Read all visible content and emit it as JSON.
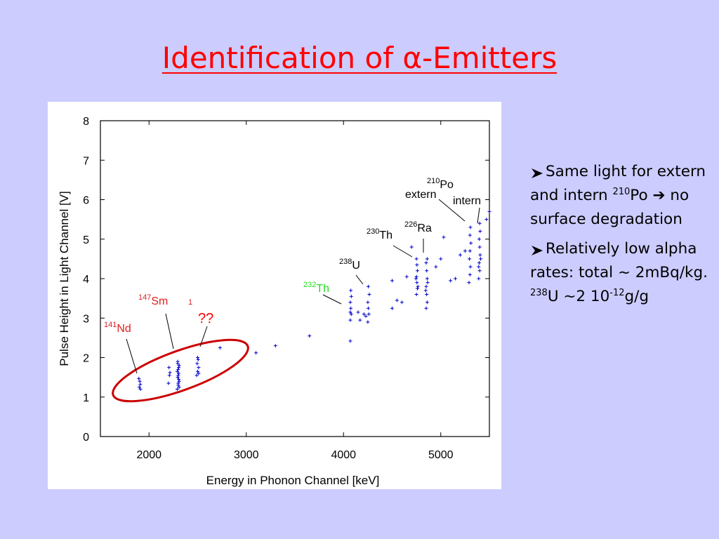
{
  "title": "Identification of α-Emitters",
  "chart_data": {
    "type": "scatter",
    "xlabel": "Energy in Phonon Channel [keV]",
    "ylabel": "Pulse Height in Light Channel  [V]",
    "xlim": [
      1500,
      5500
    ],
    "xticks": [
      2000,
      3000,
      4000,
      5000
    ],
    "ylim": [
      0,
      8
    ],
    "yticks": [
      0,
      1,
      2,
      3,
      4,
      5,
      6,
      7,
      8
    ],
    "color": "#0000cc",
    "x": [
      1900,
      1910,
      1905,
      1895,
      1912,
      2200,
      2210,
      2205,
      2215,
      2290,
      2300,
      2310,
      2295,
      2305,
      2300,
      2310,
      2295,
      2305,
      2300,
      2290,
      2310,
      2300,
      2305,
      2295,
      2490,
      2500,
      2510,
      2495,
      2505,
      2500,
      2510,
      2730,
      3100,
      3300,
      3650,
      4070,
      4070,
      4080,
      4075,
      4070,
      4080,
      4075,
      4070,
      4170,
      4150,
      4210,
      4230,
      4250,
      4260,
      4255,
      4250,
      4265,
      4255,
      4500,
      4500,
      4550,
      4600,
      4650,
      4700,
      4750,
      4760,
      4755,
      4750,
      4760,
      4755,
      4750,
      4765,
      4745,
      4850,
      4860,
      4855,
      4850,
      4860,
      4855,
      4850,
      4860,
      4845,
      4865,
      4950,
      5000,
      5030,
      5100,
      5150,
      5200,
      5250,
      5290,
      5300,
      5305,
      5295,
      5300,
      5310,
      5300,
      5305,
      5390,
      5400,
      5395,
      5405,
      5400,
      5395,
      5405,
      5400,
      5390,
      5410,
      5470,
      5500
    ],
    "y": [
      1.25,
      1.32,
      1.4,
      1.47,
      1.2,
      1.35,
      1.55,
      1.75,
      1.62,
      1.2,
      1.3,
      1.4,
      1.5,
      1.6,
      1.7,
      1.8,
      1.9,
      1.45,
      1.55,
      1.65,
      1.25,
      1.35,
      1.75,
      1.85,
      1.55,
      1.65,
      1.75,
      1.85,
      1.95,
      2.0,
      1.6,
      2.25,
      2.12,
      2.3,
      2.55,
      2.42,
      2.95,
      3.1,
      3.25,
      3.4,
      3.55,
      3.7,
      3.15,
      2.95,
      3.15,
      3.1,
      3.05,
      2.9,
      3.1,
      3.25,
      3.4,
      3.6,
      3.8,
      3.25,
      3.95,
      3.45,
      3.4,
      4.05,
      4.8,
      3.6,
      3.75,
      3.9,
      4.05,
      4.2,
      4.35,
      4.5,
      3.8,
      4.0,
      3.25,
      3.4,
      3.6,
      3.8,
      4.0,
      4.2,
      4.4,
      4.5,
      3.7,
      3.9,
      4.3,
      4.5,
      5.05,
      3.95,
      4.0,
      4.6,
      4.7,
      3.9,
      4.1,
      4.3,
      4.5,
      4.7,
      4.9,
      5.1,
      5.3,
      4.0,
      4.2,
      4.4,
      4.6,
      4.8,
      5.0,
      5.2,
      5.4,
      4.3,
      4.5,
      5.5,
      5.7
    ],
    "annotations": [
      {
        "sup": "141",
        "text": "Nd",
        "color": "#e02020"
      },
      {
        "sup": "147",
        "text": "Sm",
        "color": "#e02020"
      },
      {
        "sup": "1",
        "color": "#e02020"
      },
      {
        "text": "??",
        "color": "#ff0000"
      },
      {
        "sup": "232",
        "text": "Th",
        "color": "#22dd22"
      },
      {
        "sup": "238",
        "text": "U",
        "color": "#000000"
      },
      {
        "sup": "230",
        "text": "Th",
        "color": "#000000"
      },
      {
        "sup": "226",
        "text": "Ra",
        "color": "#000000"
      },
      {
        "sup": "210",
        "text": "Po",
        "color": "#000000"
      },
      {
        "text": "extern",
        "color": "#000000"
      },
      {
        "text": "intern",
        "color": "#000000"
      }
    ]
  },
  "bullets": [
    {
      "runs": [
        {
          "t": "Same light for extern and intern "
        },
        {
          "sup": "210"
        },
        {
          "t": "Po ➔  no surface degradation"
        }
      ]
    },
    {
      "runs": [
        {
          "t": "Relatively low alpha rates: total ~ 2mBq/kg."
        }
      ]
    }
  ],
  "note": {
    "runs": [
      {
        "sup": "238"
      },
      {
        "t": "U ~2 10"
      },
      {
        "sup": "-12"
      },
      {
        "t": "g/g"
      }
    ]
  }
}
